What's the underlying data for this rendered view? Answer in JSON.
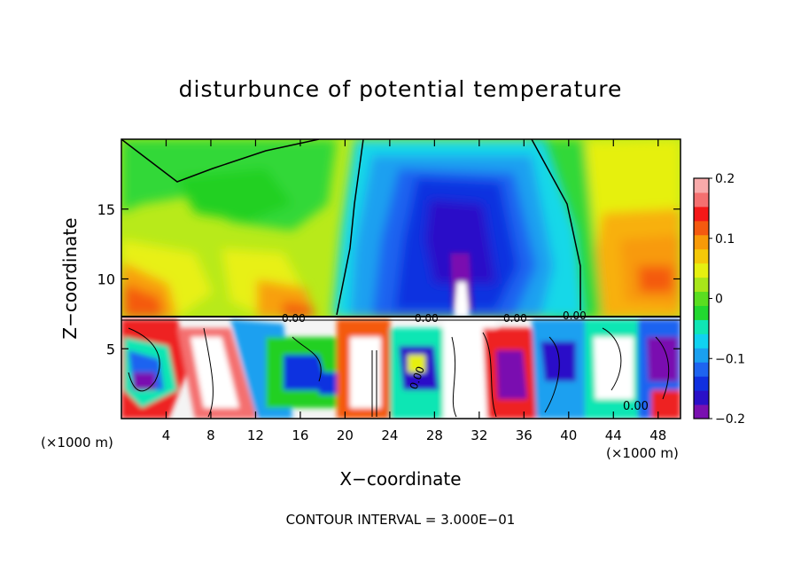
{
  "chart_data": {
    "type": "heatmap",
    "title": "disturbunce of potential temperature",
    "xlabel": "X−coordinate",
    "ylabel": "Z−coordinate",
    "x_unit": "(×1000 m)",
    "y_unit": "(×1000 m)",
    "xlim": [
      0,
      50
    ],
    "ylim": [
      0,
      20
    ],
    "x_ticks": [
      4,
      8,
      12,
      16,
      20,
      24,
      28,
      32,
      36,
      40,
      44,
      48
    ],
    "y_ticks": [
      5,
      10,
      15
    ],
    "colorbar": {
      "range": [
        -0.2,
        0.2
      ],
      "ticks": [
        -0.2,
        -0.1,
        0,
        0.1,
        0.2
      ],
      "tick_labels": [
        "−0.2",
        "−0.1",
        "0",
        "0.1",
        "0.2"
      ],
      "colors": [
        "#7a10b0",
        "#2a10c8",
        "#1030e0",
        "#1e64f0",
        "#1aa0f0",
        "#10d2f0",
        "#10e6b4",
        "#22d830",
        "#5ade20",
        "#a8e61a",
        "#e6f010",
        "#f4c808",
        "#f89a08",
        "#f45a10",
        "#f41818",
        "#f47070",
        "#f8aaaa"
      ]
    },
    "contour_labels": [
      "0.00",
      "0.00",
      "0.00",
      "0.00",
      "0.00",
      "0.00"
    ],
    "contour_interval_text": "CONTOUR INTERVAL = 3.000E−01"
  }
}
